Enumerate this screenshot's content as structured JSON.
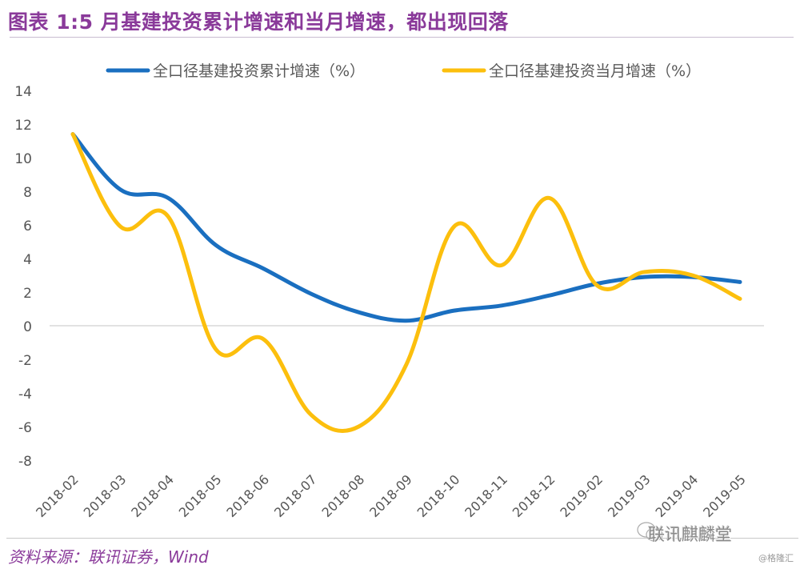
{
  "title": "图表 1:5 月基建投资累计增速和当月增速，都出现回落",
  "source": "资料来源：联讯证券，Wind",
  "watermark": "联讯麒麟堂",
  "credit": "@格隆汇",
  "colors": {
    "cumulative": "#1a6fc0",
    "monthly": "#fcbf0d",
    "accent": "#8a3a9a"
  },
  "chart_data": {
    "type": "line",
    "title": "",
    "xlabel": "",
    "ylabel": "",
    "ylim": [
      -8,
      14
    ],
    "yticks": [
      14,
      12,
      10,
      8,
      6,
      4,
      2,
      0,
      -2,
      -4,
      -6,
      -8
    ],
    "grid": false,
    "legend_position": "top",
    "x": [
      "2018-02",
      "2018-03",
      "2018-04",
      "2018-05",
      "2018-06",
      "2018-07",
      "2018-08",
      "2018-09",
      "2018-10",
      "2018-11",
      "2018-12",
      "2019-02",
      "2019-03",
      "2019-04",
      "2019-05"
    ],
    "series": [
      {
        "name": "全口径基建投资累计增速（%）",
        "color": "#1a6fc0",
        "values": [
          11.4,
          8.1,
          7.6,
          4.8,
          3.4,
          1.9,
          0.8,
          0.3,
          0.9,
          1.2,
          1.8,
          2.5,
          2.9,
          2.9,
          2.6
        ]
      },
      {
        "name": "全口径基建投资当月增速（%）",
        "color": "#fcbf0d",
        "values": [
          11.4,
          5.9,
          6.5,
          -1.4,
          -0.8,
          -5.3,
          -6.0,
          -2.3,
          5.9,
          3.6,
          7.6,
          2.4,
          3.2,
          3.0,
          1.6
        ]
      }
    ]
  }
}
